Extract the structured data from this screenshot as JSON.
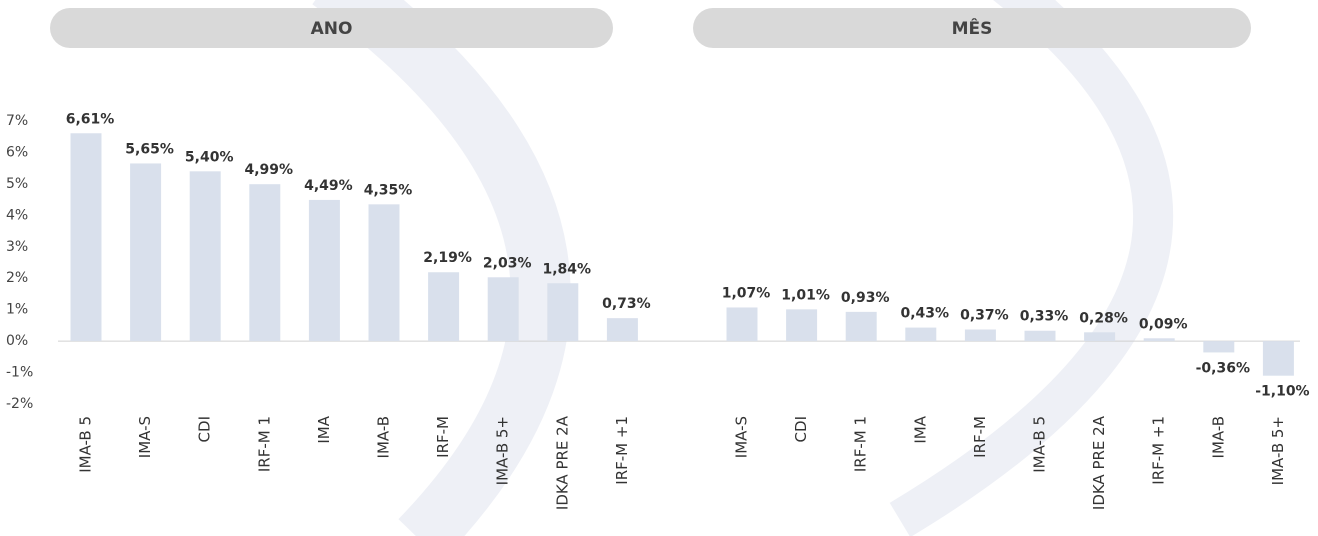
{
  "chart_data": {
    "type": "bar",
    "color": "#d9e0ec",
    "ylim": [
      -2,
      7
    ],
    "yticks": [
      {
        "value": 7,
        "label": "7%"
      },
      {
        "value": 6,
        "label": "6%"
      },
      {
        "value": 5,
        "label": "5%"
      },
      {
        "value": 4,
        "label": "4%"
      },
      {
        "value": 3,
        "label": "3%"
      },
      {
        "value": 2,
        "label": "2%"
      },
      {
        "value": 1,
        "label": "1%"
      },
      {
        "value": 0,
        "label": "0%"
      },
      {
        "value": -1,
        "label": "-1%"
      },
      {
        "value": -2,
        "label": "-2%"
      }
    ],
    "panels": [
      {
        "title": "ANO",
        "categories": [
          "IMA-B 5",
          "IMA-S",
          "CDI",
          "IRF-M 1",
          "IMA",
          "IMA-B",
          "IRF-M",
          "IMA-B 5+",
          "IDKA PRE 2A",
          "IRF-M +1"
        ],
        "values": [
          6.61,
          5.65,
          5.4,
          4.99,
          4.49,
          4.35,
          2.19,
          2.03,
          1.84,
          0.73
        ],
        "value_labels": [
          "6,61%",
          "5,65%",
          "5,40%",
          "4,99%",
          "4,49%",
          "4,35%",
          "2,19%",
          "2,03%",
          "1,84%",
          "0,73%"
        ]
      },
      {
        "title": "MÊS",
        "categories": [
          "IMA-S",
          "CDI",
          "IRF-M 1",
          "IMA",
          "IRF-M",
          "IMA-B 5",
          "IDKA PRE 2A",
          "IRF-M +1",
          "IMA-B",
          "IMA-B 5+"
        ],
        "values": [
          1.07,
          1.01,
          0.93,
          0.43,
          0.37,
          0.33,
          0.28,
          0.09,
          -0.36,
          -1.1
        ],
        "value_labels": [
          "1,07%",
          "1,01%",
          "0,93%",
          "0,43%",
          "0,37%",
          "0,33%",
          "0,28%",
          "0,09%",
          "-0,36%",
          "-1,10%"
        ]
      }
    ]
  }
}
